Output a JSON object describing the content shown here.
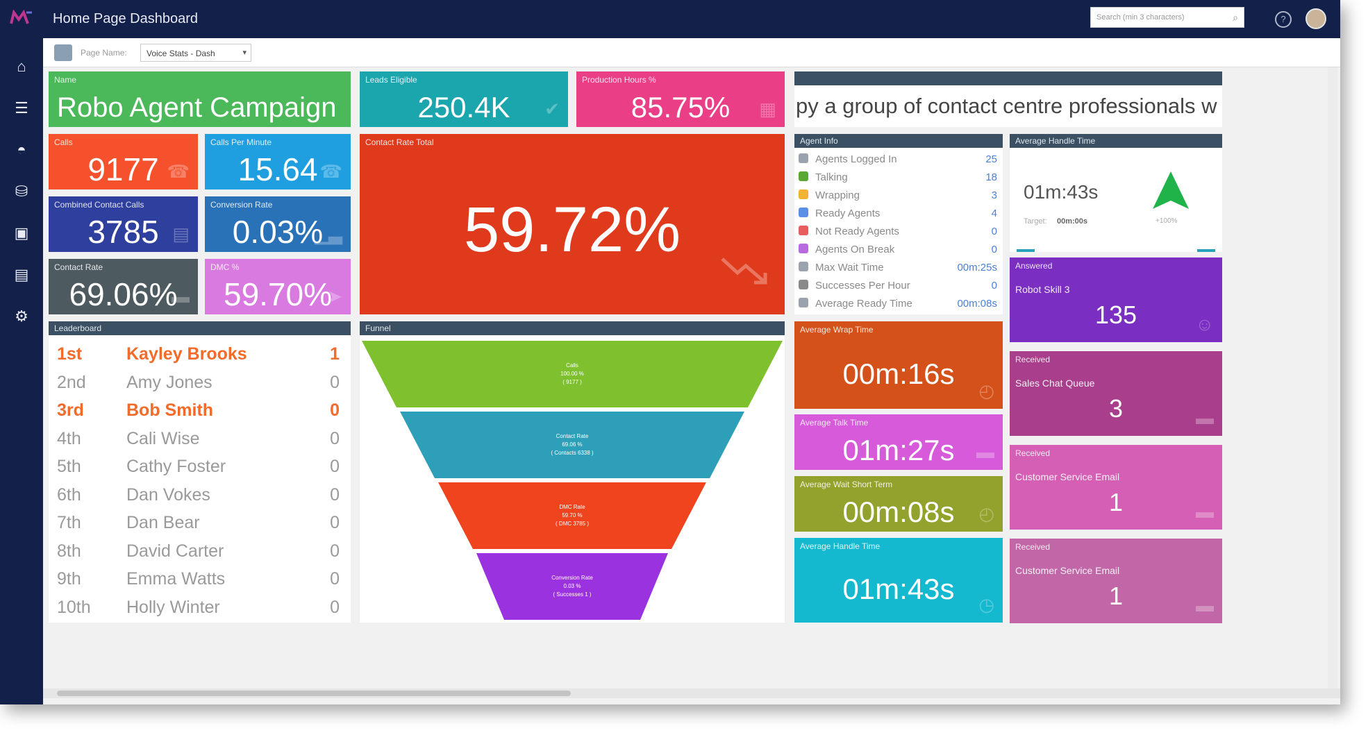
{
  "app": {
    "title": "Home Page Dashboard",
    "search_placeholder": "Search (min 3 characters)"
  },
  "page_bar": {
    "label": "Page Name:",
    "selected_page": "Voice Stats - Dash"
  },
  "tiles": {
    "campaign": {
      "header": "Name",
      "value": "Robo Agent Campaign"
    },
    "leads": {
      "header": "Leads Eligible",
      "value": "250.4K"
    },
    "production": {
      "header": "Production Hours %",
      "value": "85.75%"
    },
    "calls": {
      "header": "Calls",
      "value": "9177"
    },
    "calls_per_minute": {
      "header": "Calls Per Minute",
      "value": "15.64"
    },
    "combined_contact": {
      "header": "Combined Contact Calls",
      "value": "3785"
    },
    "conversion": {
      "header": "Conversion Rate",
      "value": "0.03%"
    },
    "contact_rate": {
      "header": "Contact Rate",
      "value": "69.06%"
    },
    "dmc": {
      "header": "DMC %",
      "value": "59.70%"
    },
    "contact_rate_total": {
      "header": "Contact Rate Total",
      "value": "59.72%"
    },
    "avg_wrap": {
      "header": "Average Wrap Time",
      "value": "00m:16s"
    },
    "avg_talk": {
      "header": "Average Talk Time",
      "value": "01m:27s"
    },
    "avg_wait_short": {
      "header": "Average Wait Short Term",
      "value": "00m:08s"
    },
    "avg_handle_bottom": {
      "header": "Average Handle Time",
      "value": "01m:43s"
    }
  },
  "ticker": {
    "text": "py a group of contact centre professionals w"
  },
  "agent_info": {
    "header": "Agent Info",
    "rows": [
      {
        "label": "Agents Logged In",
        "value": "25",
        "icon_color": "#9aa3ad"
      },
      {
        "label": "Talking",
        "value": "18",
        "icon_color": "#5aa832"
      },
      {
        "label": "Wrapping",
        "value": "3",
        "icon_color": "#f2b233"
      },
      {
        "label": "Ready Agents",
        "value": "4",
        "icon_color": "#5b8ee6"
      },
      {
        "label": "Not Ready Agents",
        "value": "0",
        "icon_color": "#e85d5d"
      },
      {
        "label": "Agents On Break",
        "value": "0",
        "icon_color": "#b86be0"
      },
      {
        "label": "Max Wait Time",
        "value": "00m:25s",
        "icon_color": "#9aa3ad"
      },
      {
        "label": "Successes Per Hour",
        "value": "0",
        "icon_color": "#8a8a8a"
      },
      {
        "label": "Average Ready Time",
        "value": "00m:08s",
        "icon_color": "#9aa3ad"
      }
    ]
  },
  "aht_gauge": {
    "header": "Average Handle Time",
    "value": "01m:43s",
    "target_label": "Target:",
    "target_value": "00m:00s",
    "change": "+100%"
  },
  "queues": [
    {
      "header": "Answered",
      "name": "Robot Skill 3",
      "value": "135",
      "color": "#7b2ec2",
      "icon": "agent-icon"
    },
    {
      "header": "Received",
      "name": "Sales Chat Queue",
      "value": "3",
      "color": "#a93f8c",
      "icon": "chat-icon"
    },
    {
      "header": "Received",
      "name": "Customer Service Email",
      "value": "1",
      "color": "#d45fb5",
      "icon": "chat-icon"
    },
    {
      "header": "Received",
      "name": "Customer Service Email",
      "value": "1",
      "color": "#c166a6",
      "icon": "chat-icon"
    }
  ],
  "leaderboard": {
    "header": "Leaderboard",
    "rows": [
      {
        "rank": "1st",
        "name": "Kayley Brooks",
        "score": "1",
        "highlight": true
      },
      {
        "rank": "2nd",
        "name": "Amy Jones",
        "score": "0",
        "highlight": false
      },
      {
        "rank": "3rd",
        "name": "Bob Smith",
        "score": "0",
        "highlight": true
      },
      {
        "rank": "4th",
        "name": "Cali Wise",
        "score": "0",
        "highlight": false
      },
      {
        "rank": "5th",
        "name": "Cathy Foster",
        "score": "0",
        "highlight": false
      },
      {
        "rank": "6th",
        "name": "Dan Vokes",
        "score": "0",
        "highlight": false
      },
      {
        "rank": "7th",
        "name": "Dan Bear",
        "score": "0",
        "highlight": false
      },
      {
        "rank": "8th",
        "name": "David Carter",
        "score": "0",
        "highlight": false
      },
      {
        "rank": "9th",
        "name": "Emma Watts",
        "score": "0",
        "highlight": false
      },
      {
        "rank": "10th",
        "name": "Holly Winter",
        "score": "0",
        "highlight": false
      }
    ]
  },
  "funnel": {
    "header": "Funnel",
    "stages": [
      {
        "title": "Calls",
        "pct": "100.00 %",
        "detail": "( 9177 )",
        "color": "#7fc02e"
      },
      {
        "title": "Contact Rate",
        "pct": "69.06 %",
        "detail": "( Contacts 6338 )",
        "color": "#2e9fb8"
      },
      {
        "title": "DMC Rate",
        "pct": "59.70 %",
        "detail": "( DMC 3785 )",
        "color": "#f0441f"
      },
      {
        "title": "Conversion Rate",
        "pct": "0.03 %",
        "detail": "( Successes 1 )",
        "color": "#9b32e0"
      }
    ]
  }
}
